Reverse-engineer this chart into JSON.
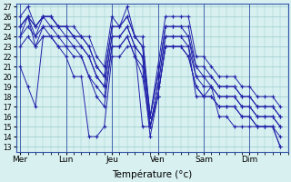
{
  "title": "Température (°c)",
  "bg_color": "#d8f0f0",
  "line_color": "#2222aa",
  "marker": "+",
  "ylim": [
    13,
    27
  ],
  "yticks": [
    13,
    14,
    15,
    16,
    17,
    18,
    19,
    20,
    21,
    22,
    23,
    24,
    25,
    26,
    27
  ],
  "x_day_labels": [
    "Mer",
    "Lun",
    "Jeu",
    "Ven",
    "Sam",
    "Dim"
  ],
  "x_day_positions": [
    0,
    6,
    12,
    18,
    24,
    30
  ],
  "xlim": [
    -0.5,
    35
  ],
  "series": [
    [
      21,
      19,
      17,
      24,
      24,
      23,
      22,
      20,
      20,
      14,
      14,
      15,
      22,
      22,
      23,
      23,
      15,
      15,
      18,
      23,
      23,
      23,
      23,
      18,
      18,
      19,
      16,
      16,
      15,
      15,
      15,
      15,
      15,
      15,
      13
    ],
    [
      24,
      26,
      23,
      25,
      24,
      24,
      23,
      23,
      22,
      20,
      18,
      17,
      23,
      23,
      24,
      22,
      20,
      15,
      18,
      23,
      23,
      23,
      22,
      19,
      18,
      18,
      17,
      17,
      17,
      16,
      16,
      15,
      15,
      15,
      14
    ],
    [
      25,
      26,
      24,
      26,
      25,
      25,
      24,
      24,
      23,
      22,
      20,
      19,
      24,
      24,
      25,
      23,
      22,
      15,
      19,
      24,
      24,
      24,
      24,
      20,
      20,
      19,
      18,
      18,
      18,
      17,
      17,
      16,
      16,
      16,
      15
    ],
    [
      25,
      26,
      25,
      26,
      26,
      25,
      25,
      24,
      24,
      23,
      21,
      20,
      25,
      25,
      26,
      24,
      23,
      16,
      20,
      25,
      25,
      25,
      25,
      21,
      21,
      20,
      19,
      19,
      19,
      18,
      18,
      17,
      17,
      17,
      16
    ],
    [
      26,
      27,
      25,
      26,
      26,
      25,
      25,
      25,
      24,
      24,
      22,
      21,
      26,
      25,
      27,
      24,
      24,
      16,
      21,
      26,
      26,
      26,
      26,
      22,
      22,
      21,
      20,
      20,
      20,
      19,
      19,
      18,
      18,
      18,
      17
    ],
    [
      25,
      26,
      25,
      26,
      26,
      25,
      25,
      24,
      24,
      23,
      21,
      20,
      25,
      25,
      26,
      24,
      23,
      16,
      20,
      25,
      25,
      25,
      24,
      21,
      20,
      20,
      19,
      19,
      19,
      18,
      18,
      17,
      17,
      17,
      16
    ],
    [
      24,
      25,
      24,
      25,
      25,
      24,
      24,
      23,
      23,
      22,
      20,
      19,
      24,
      24,
      25,
      23,
      22,
      15,
      19,
      24,
      24,
      24,
      23,
      20,
      19,
      19,
      18,
      18,
      18,
      17,
      17,
      16,
      16,
      16,
      15
    ],
    [
      23,
      24,
      23,
      24,
      24,
      23,
      23,
      22,
      22,
      20,
      19,
      18,
      23,
      23,
      24,
      22,
      21,
      14,
      18,
      23,
      23,
      23,
      22,
      19,
      18,
      18,
      17,
      17,
      17,
      16,
      16,
      15,
      15,
      15,
      13
    ]
  ]
}
